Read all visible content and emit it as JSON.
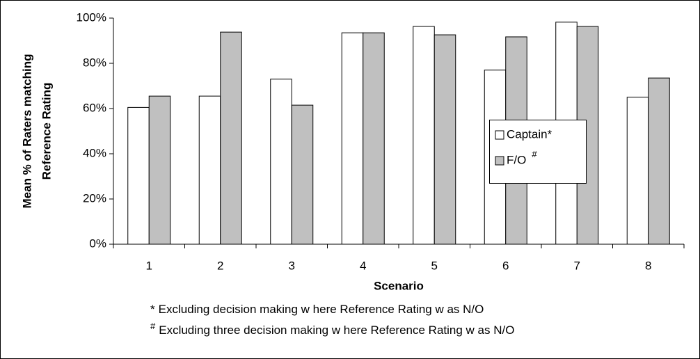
{
  "chart_data": {
    "type": "bar",
    "y_label": [
      "Mean % of Raters matching",
      "Reference Rating"
    ],
    "x_label": "Scenario",
    "categories": [
      "1",
      "2",
      "3",
      "4",
      "5",
      "6",
      "7",
      "8"
    ],
    "series": [
      {
        "name": "Captain*",
        "color": "#ffffff",
        "values": [
          60.5,
          65.5,
          73,
          93.5,
          96.3,
          77,
          98.2,
          65
        ]
      },
      {
        "name": "F/O",
        "name_superscript": "#",
        "color": "#c0c0c0",
        "values": [
          65.5,
          93.8,
          61.5,
          93.5,
          92.6,
          91.7,
          96.3,
          73.5
        ]
      }
    ],
    "ylim": [
      0,
      100
    ],
    "yticks": [
      {
        "value": 0,
        "label": "0%"
      },
      {
        "value": 20,
        "label": "20%"
      },
      {
        "value": 40,
        "label": "40%"
      },
      {
        "value": 60,
        "label": "60%"
      },
      {
        "value": 80,
        "label": "80%"
      },
      {
        "value": 100,
        "label": "100%"
      }
    ],
    "grid": false,
    "footnotes": [
      {
        "marker": "*",
        "text": "Excluding decision making w here Reference Rating w as N/O"
      },
      {
        "marker": "#",
        "text": "Excluding three decision making w here Reference Rating w as N/O"
      }
    ]
  }
}
